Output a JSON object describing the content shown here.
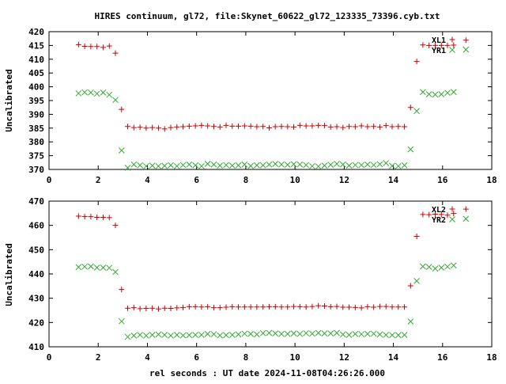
{
  "title": "HIRES continuum, gl72, file:Skynet_60622_gl72_123335_73396.cyb.txt",
  "colors": {
    "red": "#cc0000",
    "green": "#33aa33",
    "axis": "#000000"
  },
  "chart_data": [
    {
      "type": "scatter",
      "ylabel": "Uncalibrated",
      "xlabel": "",
      "xlim": [
        0,
        18
      ],
      "ylim": [
        370,
        420
      ],
      "xticks": [
        "0",
        "2",
        "4",
        "6",
        "8",
        "10",
        "12",
        "14",
        "16",
        "18"
      ],
      "yticks": [
        "370",
        "375",
        "380",
        "385",
        "390",
        "395",
        "400",
        "405",
        "410",
        "415",
        "420"
      ],
      "legend_position": "top-right",
      "series": [
        {
          "name": "XL1",
          "marker": "plus",
          "color": "#cc0000",
          "x": [
            1.2,
            1.45,
            1.7,
            1.95,
            2.2,
            2.45,
            2.7,
            2.95,
            3.2,
            3.45,
            3.7,
            3.95,
            4.2,
            4.45,
            4.7,
            4.95,
            5.2,
            5.45,
            5.7,
            5.95,
            6.2,
            6.45,
            6.7,
            6.95,
            7.2,
            7.45,
            7.7,
            7.95,
            8.2,
            8.45,
            8.7,
            8.95,
            9.2,
            9.45,
            9.7,
            9.95,
            10.2,
            10.45,
            10.7,
            10.95,
            11.2,
            11.45,
            11.7,
            11.95,
            12.2,
            12.45,
            12.7,
            12.95,
            13.2,
            13.45,
            13.7,
            13.95,
            14.2,
            14.45,
            14.7,
            14.95,
            15.2,
            15.45,
            15.7,
            15.95,
            16.2,
            16.45,
            16.95
          ],
          "y": [
            415.3,
            414.7,
            414.6,
            414.6,
            414.3,
            414.8,
            412.2,
            391.8,
            385.6,
            385.2,
            385.3,
            385.0,
            385.2,
            385.0,
            384.7,
            385.2,
            385.4,
            385.5,
            385.7,
            385.8,
            386.0,
            385.8,
            385.6,
            385.4,
            386.0,
            385.7,
            385.7,
            385.8,
            385.7,
            385.5,
            385.6,
            385.1,
            385.5,
            385.6,
            385.5,
            385.4,
            386.0,
            385.8,
            385.8,
            386.0,
            385.9,
            385.4,
            385.5,
            385.2,
            385.6,
            385.5,
            385.8,
            385.5,
            385.6,
            385.4,
            385.9,
            385.5,
            385.6,
            385.5,
            392.5,
            409.2,
            415.2,
            415.0,
            415.0,
            415.0,
            415.0,
            415.1,
            416.9
          ]
        },
        {
          "name": "YR1",
          "marker": "x",
          "color": "#33aa33",
          "x": [
            1.2,
            1.45,
            1.7,
            1.95,
            2.2,
            2.45,
            2.7,
            2.95,
            3.2,
            3.45,
            3.7,
            3.95,
            4.2,
            4.45,
            4.7,
            4.95,
            5.2,
            5.45,
            5.7,
            5.95,
            6.2,
            6.45,
            6.7,
            6.95,
            7.2,
            7.45,
            7.7,
            7.95,
            8.2,
            8.45,
            8.7,
            8.95,
            9.2,
            9.45,
            9.7,
            9.95,
            10.2,
            10.45,
            10.7,
            10.95,
            11.2,
            11.45,
            11.7,
            11.95,
            12.2,
            12.45,
            12.7,
            12.95,
            13.2,
            13.45,
            13.7,
            13.95,
            14.2,
            14.45,
            14.7,
            14.95,
            15.2,
            15.45,
            15.7,
            15.95,
            16.2,
            16.45,
            16.95
          ],
          "y": [
            397.6,
            398.0,
            397.9,
            397.5,
            397.9,
            397.1,
            395.2,
            376.9,
            370.6,
            371.8,
            371.5,
            371.2,
            371.4,
            371.2,
            371.3,
            371.5,
            371.2,
            371.6,
            371.8,
            371.5,
            371.2,
            372.0,
            371.8,
            371.4,
            371.6,
            371.4,
            371.5,
            371.8,
            371.3,
            371.5,
            371.5,
            371.8,
            372.0,
            371.8,
            371.7,
            371.9,
            371.8,
            371.6,
            371.2,
            371.1,
            371.4,
            371.7,
            372.0,
            371.8,
            371.4,
            371.6,
            371.6,
            371.8,
            371.6,
            371.9,
            372.3,
            371.3,
            371.2,
            371.5,
            377.3,
            391.2,
            398.1,
            397.3,
            397.2,
            397.3,
            397.8,
            398.1,
            413.5
          ]
        }
      ]
    },
    {
      "type": "scatter",
      "ylabel": "Uncalibrated",
      "xlabel": "rel seconds : UT date 2024-11-08T04:26:26.000",
      "xlim": [
        0,
        18
      ],
      "ylim": [
        410,
        470
      ],
      "xticks": [
        "0",
        "2",
        "4",
        "6",
        "8",
        "10",
        "12",
        "14",
        "16",
        "18"
      ],
      "yticks": [
        "410",
        "420",
        "430",
        "440",
        "450",
        "460",
        "470"
      ],
      "legend_position": "top-right",
      "series": [
        {
          "name": "XL2",
          "marker": "plus",
          "color": "#cc0000",
          "x": [
            1.2,
            1.45,
            1.7,
            1.95,
            2.2,
            2.45,
            2.7,
            2.95,
            3.2,
            3.45,
            3.7,
            3.95,
            4.2,
            4.45,
            4.7,
            4.95,
            5.2,
            5.45,
            5.7,
            5.95,
            6.2,
            6.45,
            6.7,
            6.95,
            7.2,
            7.45,
            7.7,
            7.95,
            8.2,
            8.45,
            8.7,
            8.95,
            9.2,
            9.45,
            9.7,
            9.95,
            10.2,
            10.45,
            10.7,
            10.95,
            11.2,
            11.45,
            11.7,
            11.95,
            12.2,
            12.45,
            12.7,
            12.95,
            13.2,
            13.45,
            13.7,
            13.95,
            14.2,
            14.45,
            14.7,
            14.95,
            15.2,
            15.45,
            15.7,
            15.95,
            16.2,
            16.45,
            16.95
          ],
          "y": [
            463.8,
            463.6,
            463.6,
            463.3,
            463.3,
            463.2,
            460.0,
            433.6,
            425.9,
            426.1,
            425.7,
            425.8,
            425.9,
            425.6,
            425.9,
            425.8,
            426.0,
            426.2,
            426.5,
            426.5,
            426.4,
            426.5,
            426.1,
            426.1,
            426.3,
            426.5,
            426.4,
            426.4,
            426.4,
            426.4,
            426.4,
            426.5,
            426.5,
            426.4,
            426.4,
            426.6,
            426.5,
            426.4,
            426.6,
            426.9,
            426.8,
            426.5,
            426.6,
            426.3,
            426.3,
            426.2,
            426.0,
            426.5,
            426.3,
            426.6,
            426.6,
            426.4,
            426.4,
            426.4,
            435.1,
            455.5,
            464.5,
            464.4,
            464.6,
            464.5,
            464.2,
            464.9,
            466.7
          ]
        },
        {
          "name": "YR2",
          "marker": "x",
          "color": "#33aa33",
          "x": [
            1.2,
            1.45,
            1.7,
            1.95,
            2.2,
            2.45,
            2.7,
            2.95,
            3.2,
            3.45,
            3.7,
            3.95,
            4.2,
            4.45,
            4.7,
            4.95,
            5.2,
            5.45,
            5.7,
            5.95,
            6.2,
            6.45,
            6.7,
            6.95,
            7.2,
            7.45,
            7.7,
            7.95,
            8.2,
            8.45,
            8.7,
            8.95,
            9.2,
            9.45,
            9.7,
            9.95,
            10.2,
            10.45,
            10.7,
            10.95,
            11.2,
            11.45,
            11.7,
            11.95,
            12.2,
            12.45,
            12.7,
            12.95,
            13.2,
            13.45,
            13.7,
            13.95,
            14.2,
            14.45,
            14.7,
            14.95,
            15.2,
            15.45,
            15.7,
            15.95,
            16.2,
            16.45,
            16.95
          ],
          "y": [
            442.8,
            443.0,
            443.1,
            442.6,
            442.6,
            442.5,
            440.8,
            420.5,
            414.1,
            414.6,
            414.9,
            414.6,
            414.9,
            415.1,
            414.9,
            414.6,
            414.9,
            414.7,
            414.8,
            414.9,
            414.9,
            415.3,
            415.2,
            414.7,
            414.8,
            414.9,
            415.1,
            415.4,
            415.3,
            415.1,
            415.6,
            415.7,
            415.5,
            415.3,
            415.3,
            415.5,
            415.3,
            415.6,
            415.4,
            415.7,
            415.5,
            415.5,
            415.7,
            415.1,
            414.9,
            415.3,
            415.2,
            415.3,
            415.4,
            415.1,
            414.9,
            414.8,
            414.8,
            414.9,
            420.4,
            437.1,
            443.1,
            442.9,
            442.2,
            442.6,
            443.0,
            443.5,
            462.7
          ]
        }
      ]
    }
  ]
}
